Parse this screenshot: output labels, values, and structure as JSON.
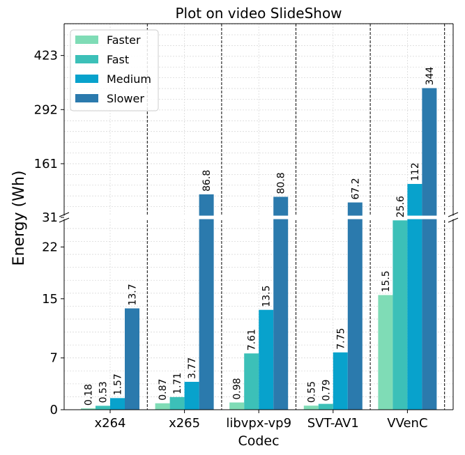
{
  "chart_data": {
    "type": "bar",
    "title": "Plot on video SlideShow",
    "xlabel": "Codec",
    "ylabel": "Energy (Wh)",
    "categories": [
      "x264",
      "x265",
      "libvpx-vp9",
      "SVT-AV1",
      "VVenC"
    ],
    "series": [
      {
        "name": "Faster",
        "color": "#7fdcb6",
        "values": [
          0.18,
          0.87,
          0.98,
          0.55,
          15.5
        ],
        "labels": [
          "0.18",
          "0.87",
          "0.98",
          "0.55",
          "15.5"
        ]
      },
      {
        "name": "Fast",
        "color": "#3cc0b8",
        "values": [
          0.53,
          1.71,
          7.61,
          0.79,
          25.6
        ],
        "labels": [
          "0.53",
          "1.71",
          "7.61",
          "0.79",
          "25.6"
        ]
      },
      {
        "name": "Medium",
        "color": "#08a2cc",
        "values": [
          1.57,
          3.77,
          13.5,
          7.75,
          112
        ],
        "labels": [
          "1.57",
          "3.77",
          "13.5",
          "7.75",
          "112"
        ]
      },
      {
        "name": "Slower",
        "color": "#2b7aad",
        "values": [
          13.7,
          86.8,
          80.8,
          67.2,
          344
        ],
        "labels": [
          "13.7",
          "86.8",
          "80.8",
          "67.2",
          "344"
        ]
      }
    ],
    "broken_axis": {
      "lower_range": [
        0,
        26
      ],
      "upper_range": [
        31,
        500
      ],
      "lower_ticks": [
        0,
        7,
        15,
        22
      ],
      "upper_ticks": [
        31,
        161,
        292,
        423
      ],
      "lower_tick_labels": [
        "0",
        "7",
        "15",
        "22"
      ],
      "upper_tick_labels": [
        "31",
        "161",
        "292",
        "423"
      ]
    },
    "grid": true,
    "legend_position": "top-left"
  }
}
